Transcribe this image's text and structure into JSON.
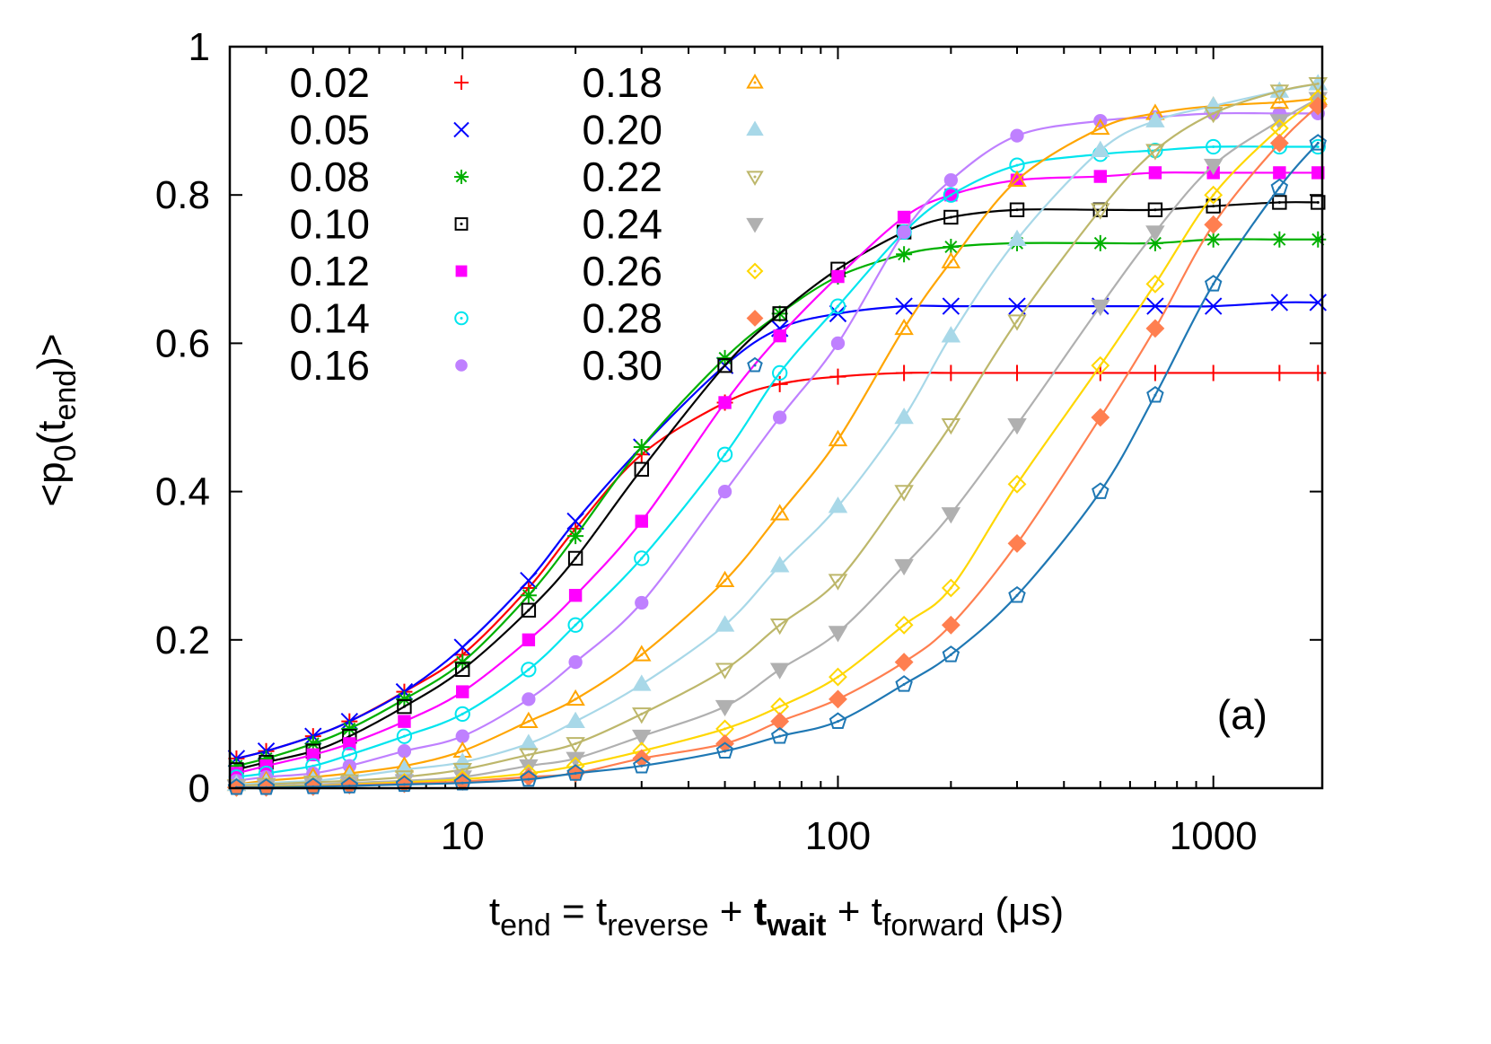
{
  "chart_data": {
    "type": "line",
    "xscale": "log",
    "xlim": [
      2.4,
      1950
    ],
    "ylim": [
      0,
      1
    ],
    "grid": false,
    "legend_placement": "top-left",
    "xlabel": {
      "t": "t",
      "end": "end",
      "eq": " = t",
      "reverse": "reverse",
      "plus1": " + ",
      "twait": "t",
      "wait": "wait",
      "plus2": " + t",
      "forward": "forward",
      "unit": " (μs)"
    },
    "ylabel": {
      "open": "<p",
      "zero": "0",
      "paren": "(t",
      "end": "end",
      "close": ")>"
    },
    "annotation": "(a)",
    "x_ticks": [
      "10",
      "100",
      "1000"
    ],
    "x_tick_values": [
      10,
      100,
      1000
    ],
    "y_ticks": [
      "0",
      "0.2",
      "0.4",
      "0.6",
      "0.8",
      "1"
    ],
    "y_tick_values": [
      0,
      0.2,
      0.4,
      0.6,
      0.8,
      1
    ],
    "x": [
      2.5,
      3,
      4,
      5,
      7,
      10,
      15,
      20,
      30,
      50,
      70,
      100,
      150,
      200,
      300,
      500,
      700,
      1000,
      1500,
      1900
    ],
    "series": [
      {
        "name": "0.02",
        "color": "#ff0000",
        "marker": "plus",
        "values": [
          0.04,
          0.05,
          0.07,
          0.09,
          0.13,
          0.18,
          0.27,
          0.35,
          0.45,
          0.52,
          0.545,
          0.555,
          0.56,
          0.56,
          0.56,
          0.56,
          0.56,
          0.56,
          0.56,
          0.56
        ]
      },
      {
        "name": "0.05",
        "color": "#0000ff",
        "marker": "cross",
        "values": [
          0.04,
          0.05,
          0.07,
          0.09,
          0.13,
          0.19,
          0.28,
          0.36,
          0.46,
          0.57,
          0.62,
          0.64,
          0.65,
          0.65,
          0.65,
          0.65,
          0.65,
          0.65,
          0.655,
          0.655
        ]
      },
      {
        "name": "0.08",
        "color": "#00b000",
        "marker": "asterisk",
        "values": [
          0.03,
          0.04,
          0.06,
          0.08,
          0.12,
          0.17,
          0.26,
          0.34,
          0.46,
          0.58,
          0.64,
          0.69,
          0.72,
          0.73,
          0.735,
          0.735,
          0.735,
          0.74,
          0.74,
          0.74
        ]
      },
      {
        "name": "0.10",
        "color": "#000000",
        "marker": "square-open",
        "values": [
          0.025,
          0.035,
          0.05,
          0.07,
          0.11,
          0.16,
          0.24,
          0.31,
          0.43,
          0.57,
          0.64,
          0.7,
          0.75,
          0.77,
          0.78,
          0.78,
          0.78,
          0.785,
          0.79,
          0.79
        ]
      },
      {
        "name": "0.12",
        "color": "#ff00ff",
        "marker": "square-filled",
        "values": [
          0.02,
          0.03,
          0.045,
          0.06,
          0.09,
          0.13,
          0.2,
          0.26,
          0.36,
          0.52,
          0.61,
          0.69,
          0.77,
          0.8,
          0.82,
          0.825,
          0.83,
          0.83,
          0.83,
          0.83
        ]
      },
      {
        "name": "0.14",
        "color": "#00e5ee",
        "marker": "circle-open",
        "values": [
          0.015,
          0.02,
          0.03,
          0.045,
          0.07,
          0.1,
          0.16,
          0.22,
          0.31,
          0.45,
          0.56,
          0.65,
          0.75,
          0.8,
          0.84,
          0.855,
          0.86,
          0.865,
          0.865,
          0.865
        ]
      },
      {
        "name": "0.16",
        "color": "#bf80ff",
        "marker": "circle-filled",
        "values": [
          0.01,
          0.015,
          0.02,
          0.03,
          0.05,
          0.07,
          0.12,
          0.17,
          0.25,
          0.4,
          0.5,
          0.6,
          0.75,
          0.82,
          0.88,
          0.9,
          0.905,
          0.91,
          0.91,
          0.91
        ]
      },
      {
        "name": "0.18",
        "color": "#ffa500",
        "marker": "triangle-open",
        "values": [
          0.005,
          0.01,
          0.015,
          0.02,
          0.03,
          0.05,
          0.09,
          0.12,
          0.18,
          0.28,
          0.37,
          0.47,
          0.62,
          0.71,
          0.82,
          0.89,
          0.91,
          0.92,
          0.925,
          0.93
        ]
      },
      {
        "name": "0.20",
        "color": "#a8d8e8",
        "marker": "triangle-filled",
        "values": [
          0.005,
          0.007,
          0.01,
          0.015,
          0.025,
          0.035,
          0.06,
          0.09,
          0.14,
          0.22,
          0.3,
          0.38,
          0.5,
          0.61,
          0.74,
          0.86,
          0.9,
          0.92,
          0.94,
          0.95
        ]
      },
      {
        "name": "0.22",
        "color": "#bdb76b",
        "marker": "invtriangle-open",
        "values": [
          0.003,
          0.005,
          0.008,
          0.01,
          0.015,
          0.025,
          0.045,
          0.06,
          0.1,
          0.16,
          0.22,
          0.28,
          0.4,
          0.49,
          0.63,
          0.78,
          0.86,
          0.91,
          0.94,
          0.95
        ]
      },
      {
        "name": "0.24",
        "color": "#b0b0b0",
        "marker": "invtriangle-filled",
        "values": [
          0.002,
          0.003,
          0.005,
          0.007,
          0.01,
          0.015,
          0.03,
          0.04,
          0.07,
          0.11,
          0.16,
          0.21,
          0.3,
          0.37,
          0.49,
          0.65,
          0.75,
          0.84,
          0.9,
          0.93
        ]
      },
      {
        "name": "0.26",
        "color": "#ffd700",
        "marker": "diamond-open",
        "values": [
          0.001,
          0.002,
          0.003,
          0.005,
          0.008,
          0.012,
          0.02,
          0.03,
          0.05,
          0.08,
          0.11,
          0.15,
          0.22,
          0.27,
          0.41,
          0.57,
          0.68,
          0.8,
          0.89,
          0.93
        ]
      },
      {
        "name": "0.28",
        "color": "#ff7f50",
        "marker": "diamond-filled",
        "values": [
          0.001,
          0.001,
          0.002,
          0.004,
          0.006,
          0.009,
          0.015,
          0.02,
          0.04,
          0.06,
          0.09,
          0.12,
          0.17,
          0.22,
          0.33,
          0.5,
          0.62,
          0.76,
          0.87,
          0.92
        ]
      },
      {
        "name": "0.30",
        "color": "#1f78b4",
        "marker": "pentagon-open",
        "values": [
          0.001,
          0.001,
          0.002,
          0.003,
          0.005,
          0.007,
          0.012,
          0.02,
          0.03,
          0.05,
          0.07,
          0.09,
          0.14,
          0.18,
          0.26,
          0.4,
          0.53,
          0.68,
          0.81,
          0.87
        ]
      }
    ]
  }
}
